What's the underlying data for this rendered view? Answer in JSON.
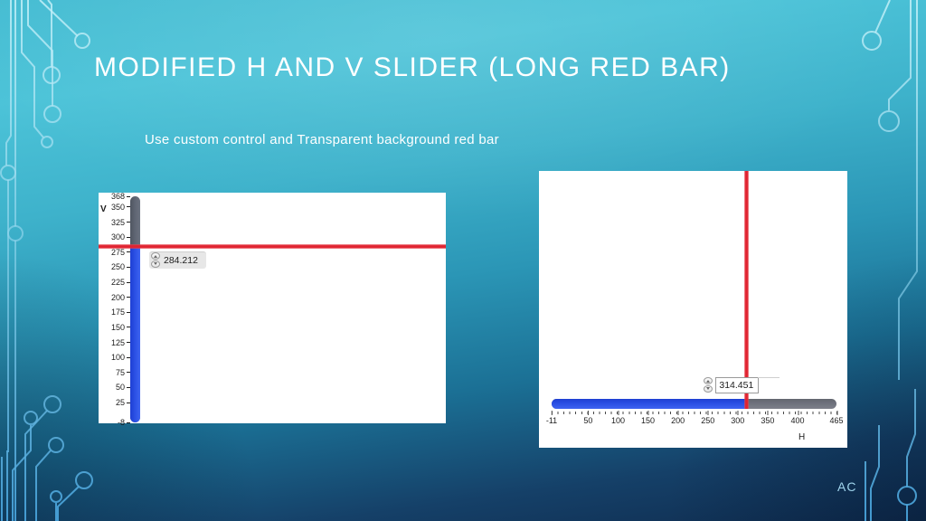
{
  "slide": {
    "title": "MODIFIED H AND V SLIDER (LONG RED BAR)",
    "subtitle": "Use custom control and Transparent background red bar",
    "footer_initials": "AC"
  },
  "colors": {
    "accent_red": "#e02330",
    "slider_blue": "#2a4fe4",
    "slider_gray_v": "#5d6370",
    "slider_gray_h": "#6f727d",
    "panel_bg": "#ffffff",
    "scale_text": "#1c1c1c",
    "title_text": "#ffffff",
    "footer_text": "#9fd4ec"
  },
  "v_slider": {
    "axis_label": "V",
    "value": 284.212,
    "value_label": "284.212",
    "min": -8,
    "max": 368,
    "tick_labels": [
      "368",
      "350",
      "325",
      "300",
      "275",
      "250",
      "225",
      "200",
      "175",
      "150",
      "125",
      "100",
      "75",
      "50",
      "25",
      "-8"
    ]
  },
  "h_slider": {
    "axis_label": "H",
    "value": 314.451,
    "value_label": "314.451",
    "min": -11,
    "max": 465,
    "tick_labels": [
      "-11",
      "50",
      "100",
      "150",
      "200",
      "250",
      "300",
      "350",
      "400",
      "465"
    ]
  }
}
